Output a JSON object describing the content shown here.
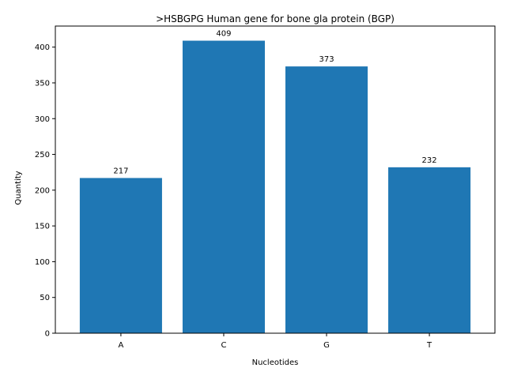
{
  "chart_data": {
    "type": "bar",
    "title": ">HSBGPG Human gene for bone gla protein (BGP)",
    "xlabel": "Nucleotides",
    "ylabel": "Quantity",
    "categories": [
      "A",
      "C",
      "G",
      "T"
    ],
    "values": [
      217,
      409,
      373,
      232
    ],
    "data_labels": [
      "217",
      "409",
      "373",
      "232"
    ],
    "ylim": [
      0,
      429.45
    ],
    "yticks": [
      0,
      50,
      100,
      150,
      200,
      250,
      300,
      350,
      400
    ],
    "ytick_labels": [
      "0",
      "50",
      "100",
      "150",
      "200",
      "250",
      "300",
      "350",
      "400"
    ],
    "bar_color": "#1f77b4",
    "grid": false,
    "legend": "none"
  }
}
